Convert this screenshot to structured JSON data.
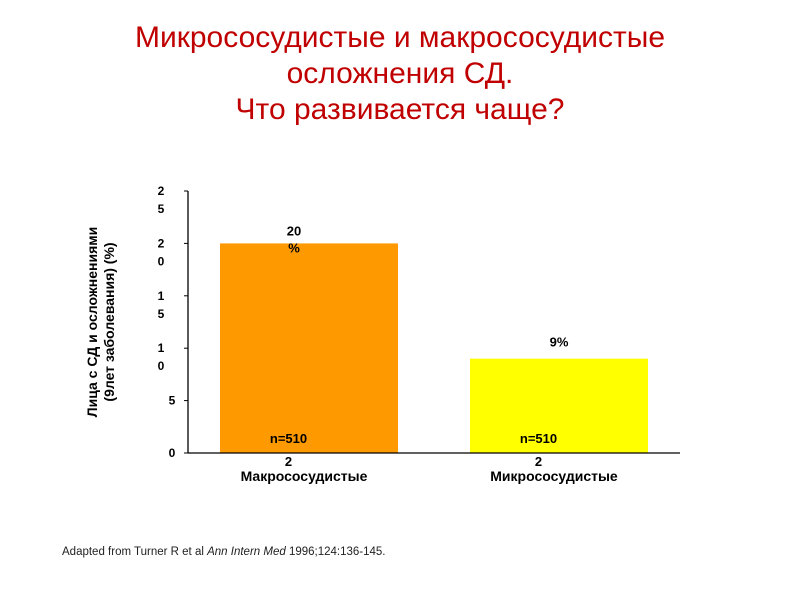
{
  "title": {
    "line1": "Микрососудистые и макрососудистые",
    "line2": "осложнения СД.",
    "line3": "Что развивается чаще?"
  },
  "chart_data": {
    "type": "bar",
    "categories": [
      "Макрососудистые",
      "Микрососудистые"
    ],
    "values": [
      20,
      9
    ],
    "data_labels": [
      "20%",
      "9%"
    ],
    "n_labels": [
      "n=5102",
      "n=5102"
    ],
    "colors": [
      "#ff9900",
      "#ffff00"
    ],
    "ylabel_line1": "Лица с СД и осложнениями",
    "ylabel_line2": "(9лет заболевания)  (%)",
    "yticks": [
      0,
      5,
      10,
      15,
      20,
      25
    ],
    "ylim": [
      0,
      25
    ],
    "grid": false
  },
  "source": {
    "prefix": "Adapted from Turner R et al ",
    "journal": "Ann Intern Med",
    "suffix": " 1996;124:136-145."
  }
}
